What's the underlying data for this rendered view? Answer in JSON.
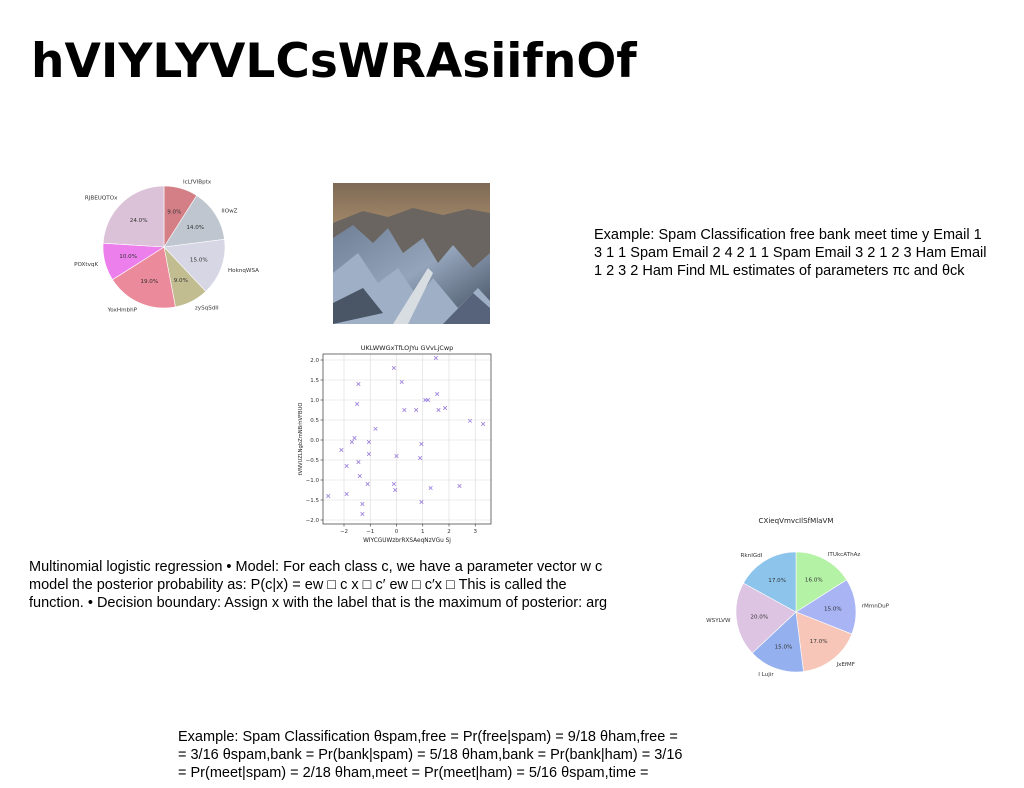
{
  "slide": {
    "title": "hVIYLYVLCsWRAsiifnOf",
    "text_right": [
      "Example: Spam Classification free bank meet time y Email 1",
      "3 1 1 Spam Email 2 4 2 1 1 Spam Email 3 2 1 2 3 Ham Email",
      "1 2 3 2 Ham Find ML estimates of parameters πc and θck"
    ],
    "text_left": [
      "Multinomial logistic regression • Model: For each class c, we have a parameter vector w c",
      "model the posterior probability as: P(c|x) = ew □ c x □ c′ ew □ c′x □ This is called the",
      "function. • Decision boundary: Assign x with the label that is the maximum of posterior: arg"
    ],
    "text_bottom": [
      "Example: Spam Classification θspam,free = Pr(free|spam) = 9/18 θham,free =",
      "= 3/16 θspam,bank = Pr(bank|spam) = 5/18 θham,bank = Pr(bank|ham) = 3/16",
      "= Pr(meet|spam) = 2/18 θham,meet = Pr(meet|ham) = 5/16 θspam,time ="
    ]
  },
  "chart_data": [
    {
      "type": "pie",
      "title": "",
      "labels": [
        "IcLfVIBptx",
        "IIOwZ",
        "HoknqWSA",
        "zySqSdII",
        "YoxHmbhP",
        "POXtvqK",
        "RJBEUQTOx"
      ],
      "values": [
        9.0,
        14.0,
        15.0,
        9.0,
        19.0,
        10.0,
        24.0
      ],
      "value_labels": [
        "9.0%",
        "14.0%",
        "15.0%",
        "9.0%",
        "19.0%",
        "10.0%",
        "24.0%"
      ],
      "colors": [
        "#d47f86",
        "#bfc6cf",
        "#d6d6e4",
        "#c2bd91",
        "#eb8a9a",
        "#ec7fec",
        "#dcc2d8"
      ]
    },
    {
      "type": "scatter",
      "title": "UKLWWGxTfLOJYu GVvLjCwp",
      "xlabel": "WIYCGUWzbrRXSAeqNzVGu Sj",
      "ylabel": "tVNVUZLNgbZmNBrhVFBUO",
      "xlim": [
        -2.8,
        3.6
      ],
      "ylim": [
        -2.1,
        2.15
      ],
      "xticks": [
        -2,
        -1,
        0,
        1,
        2,
        3
      ],
      "yticks": [
        -2.0,
        -1.5,
        -1.0,
        -0.5,
        0.0,
        0.5,
        1.0,
        1.5,
        2.0
      ],
      "xtick_labels": [
        "−2",
        "−1",
        "0",
        "1",
        "2",
        "3"
      ],
      "ytick_labels": [
        "−2.0",
        "−1.5",
        "−1.0",
        "−0.5",
        "0.0",
        "0.5",
        "1.0",
        "1.5",
        "2.0"
      ],
      "marker": "x",
      "color": "#9b7fdc",
      "grid": true,
      "points": [
        [
          -2.6,
          -1.4
        ],
        [
          -2.1,
          -0.25
        ],
        [
          -1.9,
          -0.65
        ],
        [
          -1.9,
          -1.35
        ],
        [
          -1.7,
          -0.05
        ],
        [
          -1.6,
          0.05
        ],
        [
          -1.5,
          0.9
        ],
        [
          -1.45,
          1.4
        ],
        [
          -1.45,
          -0.55
        ],
        [
          -1.4,
          -0.9
        ],
        [
          -1.3,
          -1.6
        ],
        [
          -1.3,
          -1.85
        ],
        [
          -1.1,
          -1.1
        ],
        [
          -1.05,
          -0.05
        ],
        [
          -1.05,
          -0.35
        ],
        [
          -0.8,
          0.28
        ],
        [
          -0.1,
          1.8
        ],
        [
          -0.1,
          -1.1
        ],
        [
          -0.05,
          -1.25
        ],
        [
          0.0,
          -0.4
        ],
        [
          0.2,
          1.45
        ],
        [
          0.3,
          0.75
        ],
        [
          0.75,
          0.75
        ],
        [
          0.9,
          -0.45
        ],
        [
          0.95,
          -0.1
        ],
        [
          0.95,
          -1.55
        ],
        [
          1.1,
          1.0
        ],
        [
          1.2,
          1.0
        ],
        [
          1.3,
          -1.2
        ],
        [
          1.5,
          2.05
        ],
        [
          1.55,
          1.15
        ],
        [
          1.6,
          0.75
        ],
        [
          1.85,
          0.8
        ],
        [
          2.4,
          -1.15
        ],
        [
          2.8,
          0.48
        ],
        [
          3.3,
          0.4
        ]
      ]
    },
    {
      "type": "pie",
      "title": "CXieqVmvcIlSfMlaVM",
      "labels": [
        "ITUkcAThAz",
        "rMmnDuP",
        "JxEfMF",
        "I Lujir",
        "WSYLVW",
        "RknIGdI"
      ],
      "values": [
        16.0,
        15.0,
        17.0,
        15.0,
        20.0,
        17.0
      ],
      "value_labels": [
        "16.0%",
        "15.0%",
        "17.0%",
        "15.0%",
        "20.0%",
        "17.0%"
      ],
      "colors": [
        "#b4f2a6",
        "#a8b4f4",
        "#f8c6b8",
        "#95b0ee",
        "#dcc4e2",
        "#8cc4eb"
      ]
    }
  ]
}
